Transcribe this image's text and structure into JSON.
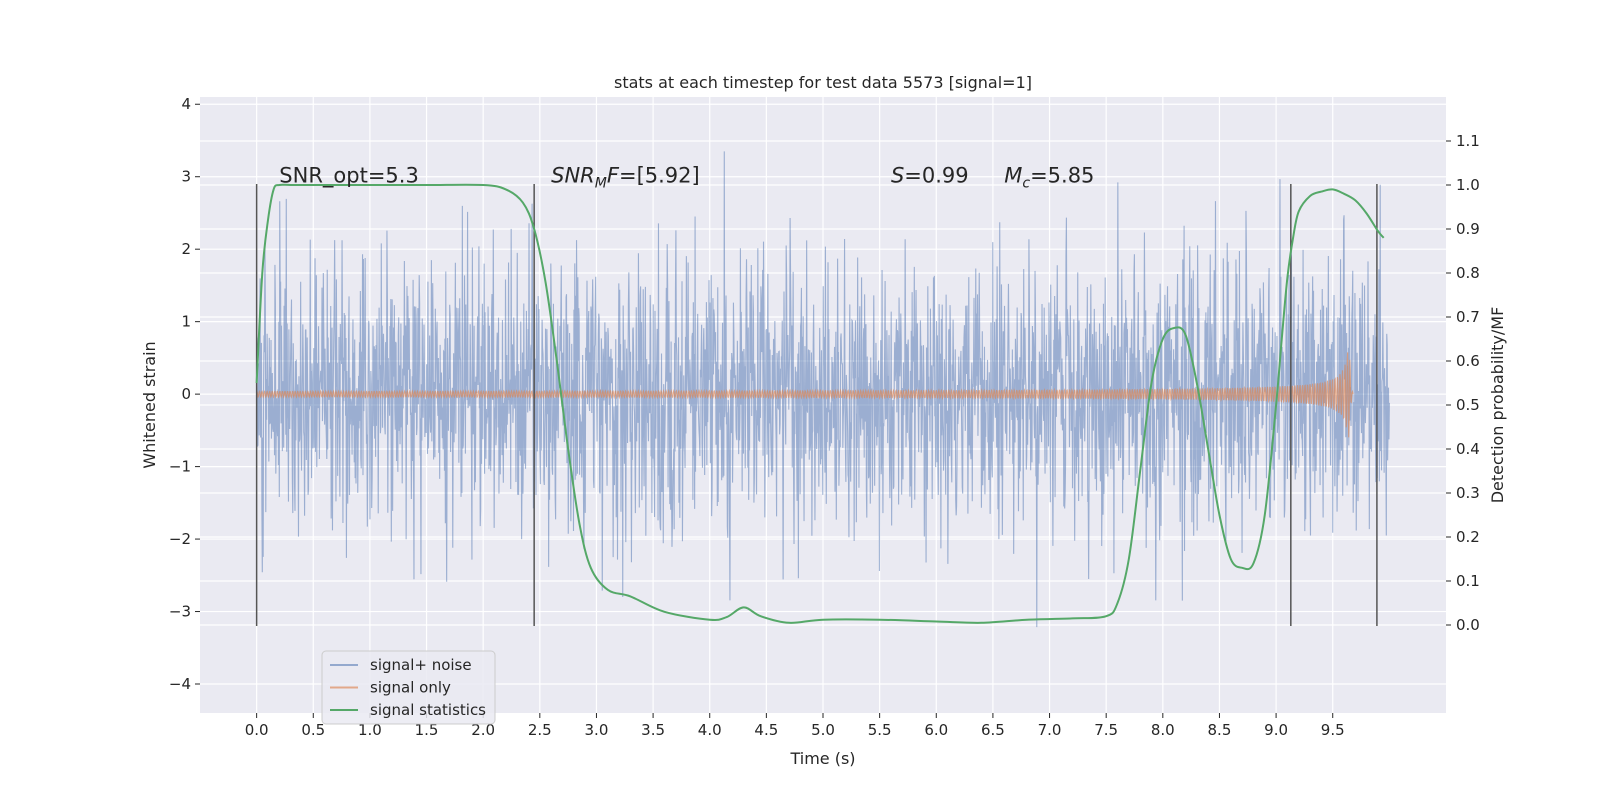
{
  "chart_data": {
    "type": "line",
    "title": "stats at each timestep for test data 5573 [signal=1]",
    "xlabel": "Time (s)",
    "ylabel_left": "Whitened strain",
    "ylabel_right": "Detection probability/MF",
    "xlim": [
      -0.5,
      10.5
    ],
    "ylim_left": [
      -4.4,
      4.1
    ],
    "ylim_right": [
      -0.2,
      1.2
    ],
    "x_ticks": [
      0.0,
      0.5,
      1.0,
      1.5,
      2.0,
      2.5,
      3.0,
      3.5,
      4.0,
      4.5,
      5.0,
      5.5,
      6.0,
      6.5,
      7.0,
      7.5,
      8.0,
      8.5,
      9.0,
      9.5
    ],
    "y_ticks_left": [
      -4,
      -3,
      -2,
      -1,
      0,
      1,
      2,
      3,
      4
    ],
    "y_ticks_right": [
      0.0,
      0.1,
      0.2,
      0.3,
      0.4,
      0.5,
      0.6,
      0.7,
      0.8,
      0.9,
      1.0,
      1.1
    ],
    "grid": true,
    "legend_position": "lower-left",
    "colors": {
      "background": "#eaeaf2",
      "grid": "#ffffff",
      "noise": "#4c72b0",
      "signal": "#dd8452",
      "statistics": "#55a868",
      "vlines": "#555555"
    },
    "annotations": [
      {
        "text": "SNR_opt=5.3",
        "x": 0.2,
        "y": 3.0
      },
      {
        "prefix": "",
        "italic": "SNR",
        "sub": "M",
        "italic2": "F",
        "suffix": "=[5.92]",
        "x": 2.6,
        "y": 3.0
      },
      {
        "prefix": "",
        "italic": "S",
        "sub": "",
        "italic2": "",
        "suffix": "=0.99",
        "x": 5.6,
        "y": 3.0
      },
      {
        "prefix": "",
        "italic": "M",
        "sub": "c",
        "italic2": "",
        "suffix": "=5.85",
        "x": 6.6,
        "y": 3.0
      }
    ],
    "vertical_lines": [
      0.0,
      2.45,
      9.13,
      9.89
    ],
    "vertical_line_range": [
      -3.2,
      2.9
    ],
    "series": [
      {
        "name": "signal+ noise",
        "axis": "left",
        "description_type": "noise",
        "x_range": [
          0.0,
          10.0
        ],
        "envelope": [
          -2.3,
          2.3
        ],
        "peak_range": [
          -4.0,
          3.8
        ]
      },
      {
        "name": "signal only",
        "axis": "left",
        "description_type": "chirp",
        "x_range": [
          0.0,
          9.68
        ],
        "amplitude_start": 0.02,
        "amplitude_end": 0.6,
        "merger_time": 9.65
      },
      {
        "name": "signal statistics",
        "axis": "right",
        "x": [
          0.0,
          0.05,
          0.1,
          0.15,
          0.2,
          0.3,
          0.5,
          1.0,
          1.5,
          2.0,
          2.2,
          2.35,
          2.45,
          2.55,
          2.65,
          2.75,
          2.85,
          2.95,
          3.1,
          3.3,
          3.6,
          4.0,
          4.15,
          4.3,
          4.45,
          4.7,
          5.0,
          5.5,
          6.0,
          6.4,
          6.8,
          7.2,
          7.5,
          7.6,
          7.7,
          7.8,
          7.9,
          8.0,
          8.1,
          8.2,
          8.3,
          8.4,
          8.5,
          8.6,
          8.7,
          8.8,
          8.9,
          9.0,
          9.05,
          9.1,
          9.15,
          9.2,
          9.3,
          9.4,
          9.5,
          9.6,
          9.7,
          9.8,
          9.9,
          9.95
        ],
        "values": [
          0.55,
          0.8,
          0.92,
          0.99,
          1.0,
          1.0,
          1.0,
          1.0,
          1.0,
          1.0,
          0.99,
          0.96,
          0.9,
          0.78,
          0.6,
          0.4,
          0.23,
          0.13,
          0.08,
          0.065,
          0.03,
          0.012,
          0.018,
          0.04,
          0.02,
          0.005,
          0.012,
          0.012,
          0.008,
          0.005,
          0.012,
          0.015,
          0.02,
          0.05,
          0.15,
          0.35,
          0.55,
          0.65,
          0.675,
          0.66,
          0.55,
          0.4,
          0.25,
          0.15,
          0.13,
          0.14,
          0.25,
          0.5,
          0.65,
          0.79,
          0.88,
          0.94,
          0.975,
          0.985,
          0.99,
          0.98,
          0.965,
          0.935,
          0.895,
          0.88
        ]
      }
    ],
    "legend": [
      "signal+ noise",
      "signal only",
      "signal statistics"
    ]
  }
}
